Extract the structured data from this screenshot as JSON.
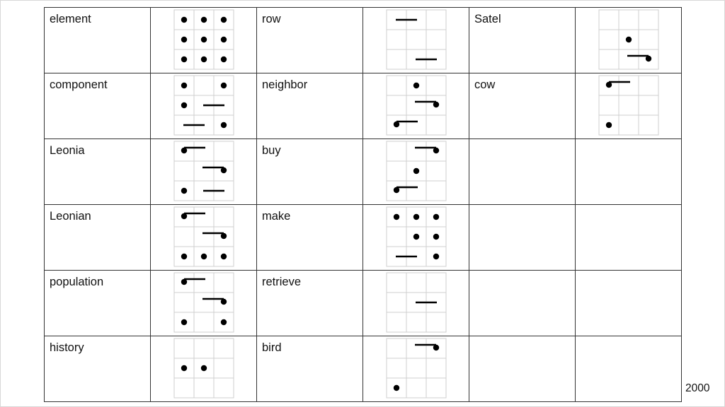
{
  "table": {
    "rows": [
      [
        {
          "word": "element",
          "glyph": [
            [
              "dot",
              "dot",
              "dot"
            ],
            [
              "dot",
              "dot",
              "dot"
            ],
            [
              "dot",
              "dot",
              "dot"
            ]
          ]
        },
        {
          "word": "row",
          "glyph": [
            [
              "bar",
              "",
              ""
            ],
            [
              "",
              "",
              ""
            ],
            [
              "",
              "bar",
              ""
            ]
          ]
        },
        {
          "word": "Satel",
          "glyph": [
            [
              "",
              "",
              ""
            ],
            [
              "",
              "dot",
              ""
            ],
            [
              "",
              "",
              "bar-dot"
            ]
          ]
        }
      ],
      [
        {
          "word": "component",
          "glyph": [
            [
              "dot",
              "",
              "dot"
            ],
            [
              "dot",
              "bar",
              ""
            ],
            [
              "bar",
              "",
              "dot"
            ]
          ]
        },
        {
          "word": "neighbor",
          "glyph": [
            [
              "",
              "dot",
              ""
            ],
            [
              "",
              "",
              "bar-dot"
            ],
            [
              "dot-bar",
              "",
              ""
            ]
          ]
        },
        {
          "word": "cow",
          "glyph": [
            [
              "dot-bar",
              "",
              ""
            ],
            [
              "",
              "",
              ""
            ],
            [
              "dot",
              "",
              ""
            ]
          ]
        }
      ],
      [
        {
          "word": "Leonia",
          "glyph": [
            [
              "dot-bar",
              "",
              ""
            ],
            [
              "",
              "",
              "bar-dot"
            ],
            [
              "dot",
              "bar",
              ""
            ]
          ]
        },
        {
          "word": "buy",
          "glyph": [
            [
              "",
              "",
              "bar-dot"
            ],
            [
              "",
              "dot",
              ""
            ],
            [
              "dot-bar",
              "",
              ""
            ]
          ]
        },
        {
          "word": "",
          "glyph": null
        }
      ],
      [
        {
          "word": "Leonian",
          "glyph": [
            [
              "dot-bar",
              "",
              ""
            ],
            [
              "",
              "",
              "bar-dot"
            ],
            [
              "dot",
              "dot",
              "dot"
            ]
          ]
        },
        {
          "word": "make",
          "glyph": [
            [
              "dot",
              "dot",
              "dot"
            ],
            [
              "",
              "dot",
              "dot"
            ],
            [
              "bar",
              "",
              "dot"
            ]
          ]
        },
        {
          "word": "",
          "glyph": null
        }
      ],
      [
        {
          "word": "population",
          "glyph": [
            [
              "dot-bar",
              "",
              ""
            ],
            [
              "",
              "",
              "bar-dot"
            ],
            [
              "dot",
              "",
              "dot"
            ]
          ]
        },
        {
          "word": "retrieve",
          "glyph": [
            [
              "",
              "",
              ""
            ],
            [
              "",
              "bar",
              ""
            ],
            [
              "",
              "",
              ""
            ]
          ]
        },
        {
          "word": "",
          "glyph": null
        }
      ],
      [
        {
          "word": "history",
          "glyph": [
            [
              "",
              "",
              ""
            ],
            [
              "dot",
              "dot",
              ""
            ],
            [
              "",
              "",
              ""
            ]
          ]
        },
        {
          "word": "bird",
          "glyph": [
            [
              "",
              "",
              "bar-dot"
            ],
            [
              "",
              "",
              ""
            ],
            [
              "dot",
              "",
              ""
            ]
          ]
        },
        {
          "word": "",
          "glyph": null
        }
      ]
    ]
  },
  "page_number": "2000"
}
